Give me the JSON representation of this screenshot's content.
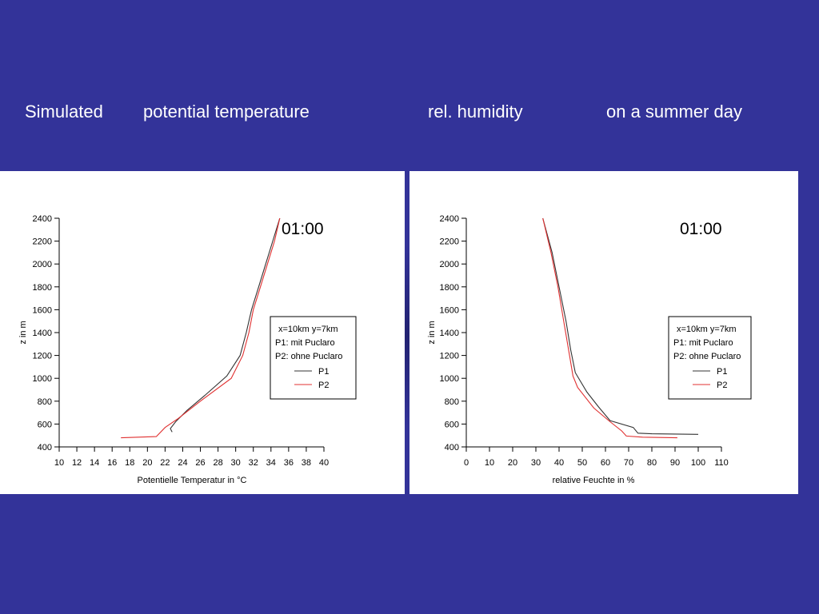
{
  "slide": {
    "title_parts": [
      "Simulated",
      "potential temperature",
      "rel. humidity",
      "on a summer day"
    ],
    "background_color": "#333399"
  },
  "chart_data": [
    {
      "type": "line",
      "time_label": "01:00",
      "xlabel": "Potentielle Temperatur in °C",
      "ylabel": "z in m",
      "xlim": [
        10,
        40
      ],
      "ylim": [
        400,
        2400
      ],
      "x_ticks": [
        10,
        12,
        14,
        16,
        18,
        20,
        22,
        24,
        26,
        28,
        30,
        32,
        34,
        36,
        38,
        40
      ],
      "y_ticks": [
        400,
        600,
        800,
        1000,
        1200,
        1400,
        1600,
        1800,
        2000,
        2200,
        2400
      ],
      "legend": {
        "lines": [
          "x=10km y=7km",
          "P1: mit Puclaro",
          "P2: ohne Puclaro"
        ],
        "placement": "right"
      },
      "series": [
        {
          "name": "P1",
          "color": "#333333",
          "points": [
            [
              22.8,
              530
            ],
            [
              22.6,
              560
            ],
            [
              23.2,
              620
            ],
            [
              24.5,
              720
            ],
            [
              26.5,
              850
            ],
            [
              29,
              1020
            ],
            [
              30.5,
              1200
            ],
            [
              31.2,
              1400
            ],
            [
              31.8,
              1600
            ],
            [
              32.6,
              1800
            ],
            [
              33.4,
              2000
            ],
            [
              34.2,
              2200
            ],
            [
              35,
              2400
            ]
          ]
        },
        {
          "name": "P2",
          "color": "#e03030",
          "points": [
            [
              17,
              480
            ],
            [
              21,
              490
            ],
            [
              22,
              570
            ],
            [
              23.5,
              650
            ],
            [
              26,
              800
            ],
            [
              29.5,
              1000
            ],
            [
              30.8,
              1200
            ],
            [
              31.5,
              1400
            ],
            [
              32,
              1600
            ],
            [
              32.8,
              1800
            ],
            [
              33.6,
              2000
            ],
            [
              34.4,
              2200
            ],
            [
              35,
              2400
            ]
          ]
        }
      ]
    },
    {
      "type": "line",
      "time_label": "01:00",
      "xlabel": "relative Feuchte in %",
      "ylabel": "z in m",
      "xlim": [
        0,
        110
      ],
      "ylim": [
        400,
        2400
      ],
      "x_ticks": [
        0,
        10,
        20,
        30,
        40,
        50,
        60,
        70,
        80,
        90,
        100,
        110
      ],
      "y_ticks": [
        400,
        600,
        800,
        1000,
        1200,
        1400,
        1600,
        1800,
        2000,
        2200,
        2400
      ],
      "legend": {
        "lines": [
          "x=10km y=7km",
          "P1: mit Puclaro",
          "P2: ohne Puclaro"
        ],
        "placement": "right"
      },
      "series": [
        {
          "name": "P1",
          "color": "#333333",
          "points": [
            [
              100,
              510
            ],
            [
              80,
              515
            ],
            [
              74,
              520
            ],
            [
              72,
              570
            ],
            [
              62,
              630
            ],
            [
              57,
              750
            ],
            [
              52,
              880
            ],
            [
              47,
              1050
            ],
            [
              45,
              1250
            ],
            [
              43,
              1500
            ],
            [
              40,
              1800
            ],
            [
              37,
              2100
            ],
            [
              33,
              2400
            ]
          ]
        },
        {
          "name": "P2",
          "color": "#e03030",
          "points": [
            [
              91,
              480
            ],
            [
              76,
              485
            ],
            [
              69,
              495
            ],
            [
              67,
              540
            ],
            [
              62,
              620
            ],
            [
              55,
              740
            ],
            [
              48,
              920
            ],
            [
              46,
              1020
            ],
            [
              44.5,
              1200
            ],
            [
              42,
              1500
            ],
            [
              39.5,
              1800
            ],
            [
              36.5,
              2100
            ],
            [
              33,
              2400
            ]
          ]
        }
      ]
    }
  ]
}
